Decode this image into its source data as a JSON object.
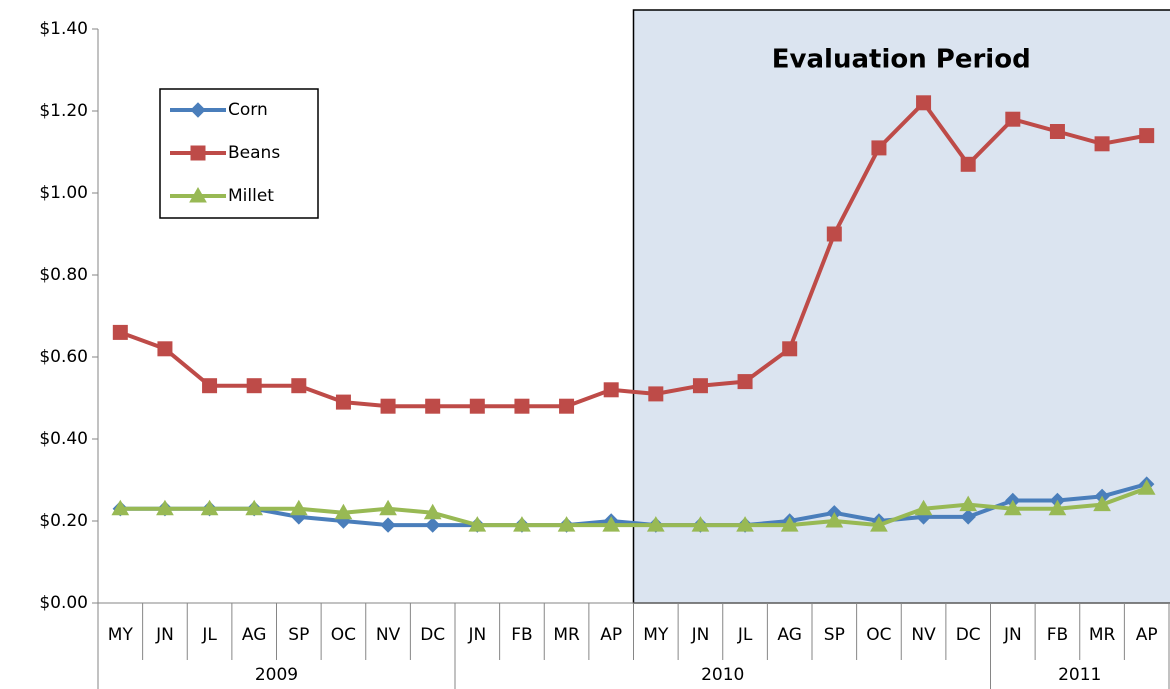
{
  "chart_data": {
    "type": "line",
    "categories": [
      "MY",
      "JN",
      "JL",
      "AG",
      "SP",
      "OC",
      "NV",
      "DC",
      "JN",
      "FB",
      "MR",
      "AP",
      "MY",
      "JN",
      "JL",
      "AG",
      "SP",
      "OC",
      "NV",
      "DC",
      "JN",
      "FB",
      "MR",
      "AP"
    ],
    "groups": [
      {
        "label": "2009",
        "count": 8
      },
      {
        "label": "2010",
        "count": 12
      },
      {
        "label": "2011",
        "count": 4
      }
    ],
    "series": [
      {
        "name": "Corn",
        "color": "#4a7ebb",
        "marker": "diamond",
        "values": [
          0.23,
          0.23,
          0.23,
          0.23,
          0.21,
          0.2,
          0.19,
          0.19,
          0.19,
          0.19,
          0.19,
          0.2,
          0.19,
          0.19,
          0.19,
          0.2,
          0.22,
          0.2,
          0.21,
          0.21,
          0.25,
          0.25,
          0.26,
          0.29
        ]
      },
      {
        "name": "Beans",
        "color": "#be4b48",
        "marker": "square",
        "values": [
          0.66,
          0.62,
          0.53,
          0.53,
          0.53,
          0.49,
          0.48,
          0.48,
          0.48,
          0.48,
          0.48,
          0.52,
          0.51,
          0.53,
          0.54,
          0.62,
          0.9,
          1.11,
          1.22,
          1.07,
          1.18,
          1.15,
          1.12,
          1.14
        ]
      },
      {
        "name": "Millet",
        "color": "#98b954",
        "marker": "triangle",
        "values": [
          0.23,
          0.23,
          0.23,
          0.23,
          0.23,
          0.22,
          0.23,
          0.22,
          0.19,
          0.19,
          0.19,
          0.19,
          0.19,
          0.19,
          0.19,
          0.19,
          0.2,
          0.19,
          0.23,
          0.24,
          0.23,
          0.23,
          0.24,
          0.28
        ]
      }
    ],
    "ylim": [
      0,
      1.4
    ],
    "yticks": [
      {
        "value": 0,
        "label": "$0.00"
      },
      {
        "value": 0.2,
        "label": "$0.20"
      },
      {
        "value": 0.4,
        "label": "$0.40"
      },
      {
        "value": 0.6,
        "label": "$0.60"
      },
      {
        "value": 0.8,
        "label": "$0.80"
      },
      {
        "value": 1.0,
        "label": "$1.00"
      },
      {
        "value": 1.2,
        "label": "$1.20"
      },
      {
        "value": 1.4,
        "label": "$1.40"
      }
    ],
    "highlight": {
      "text": "Evaluation Period",
      "start_category": 12
    },
    "legend": "upper left"
  }
}
